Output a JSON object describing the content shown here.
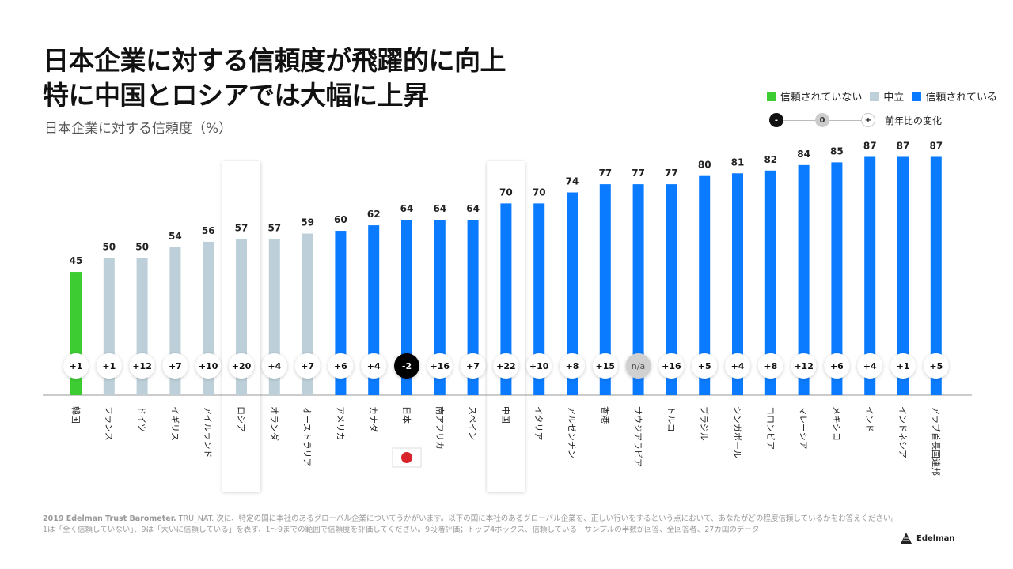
{
  "title_line1": "日本企業に対する信頼度が飛躍的に向上",
  "title_line2": "特に中国とロシアでは大幅に上昇",
  "legend": {
    "distrust": "信頼されていない",
    "neutral": "中立",
    "trust": "信頼されている",
    "change_minus": "-",
    "change_zero": "0",
    "change_plus": "+",
    "change_label": "前年比の変化"
  },
  "colors": {
    "distrust": "#3ecc33",
    "neutral": "#bdd0d9",
    "trust": "#0a7bff"
  },
  "footnote": {
    "source_bold": "2019 Edelman Trust Barometer.",
    "line1": " TRU_NAT. 次に、特定の国に本社のあるグローバル企業についてうかがいます。以下の国に本社のあるグローバル企業を、正しい行いをするという点において、あなたがどの程度信頼しているかをお答えください。",
    "line2": "1は「全く信頼していない」、9は「大いに信頼している」を表す、1〜9までの範囲で信頼度を評価してください。9段階評価；トップ4ボックス、信頼している　サンプルの半数が回答、全回答者、27カ国のデータ"
  },
  "brand": "Edelman",
  "chart_data": {
    "type": "bar",
    "title": "日本企業に対する信頼度（%）",
    "ylim": [
      0,
      100
    ],
    "categories": [
      "韓国",
      "フランス",
      "ドイツ",
      "イギリス",
      "アイルランド",
      "ロシア",
      "オランダ",
      "オーストラリア",
      "アメリカ",
      "カナダ",
      "日本",
      "南アフリカ",
      "スペイン",
      "中国",
      "イタリア",
      "アルゼンチン",
      "香港",
      "サウジアラビア",
      "トルコ",
      "ブラジル",
      "シンガポール",
      "コロンビア",
      "マレーシア",
      "メキシコ",
      "インド",
      "インドネシア",
      "アラブ首長国連邦"
    ],
    "values": [
      45,
      50,
      50,
      54,
      56,
      57,
      57,
      59,
      60,
      62,
      64,
      64,
      64,
      70,
      70,
      74,
      77,
      77,
      77,
      80,
      81,
      82,
      84,
      85,
      87,
      87,
      87
    ],
    "trust_level": [
      "distrust",
      "neutral",
      "neutral",
      "neutral",
      "neutral",
      "neutral",
      "neutral",
      "neutral",
      "trust",
      "trust",
      "trust",
      "trust",
      "trust",
      "trust",
      "trust",
      "trust",
      "trust",
      "trust",
      "trust",
      "trust",
      "trust",
      "trust",
      "trust",
      "trust",
      "trust",
      "trust",
      "trust"
    ],
    "change": [
      "+1",
      "+1",
      "+12",
      "+7",
      "+10",
      "+20",
      "+4",
      "+7",
      "+6",
      "+4",
      "-2",
      "+16",
      "+7",
      "+22",
      "+10",
      "+8",
      "+15",
      "n/a",
      "+16",
      "+5",
      "+4",
      "+8",
      "+12",
      "+6",
      "+4",
      "+1",
      "+5"
    ],
    "highlighted": [
      "ロシア",
      "中国"
    ],
    "flag_under": "日本"
  }
}
